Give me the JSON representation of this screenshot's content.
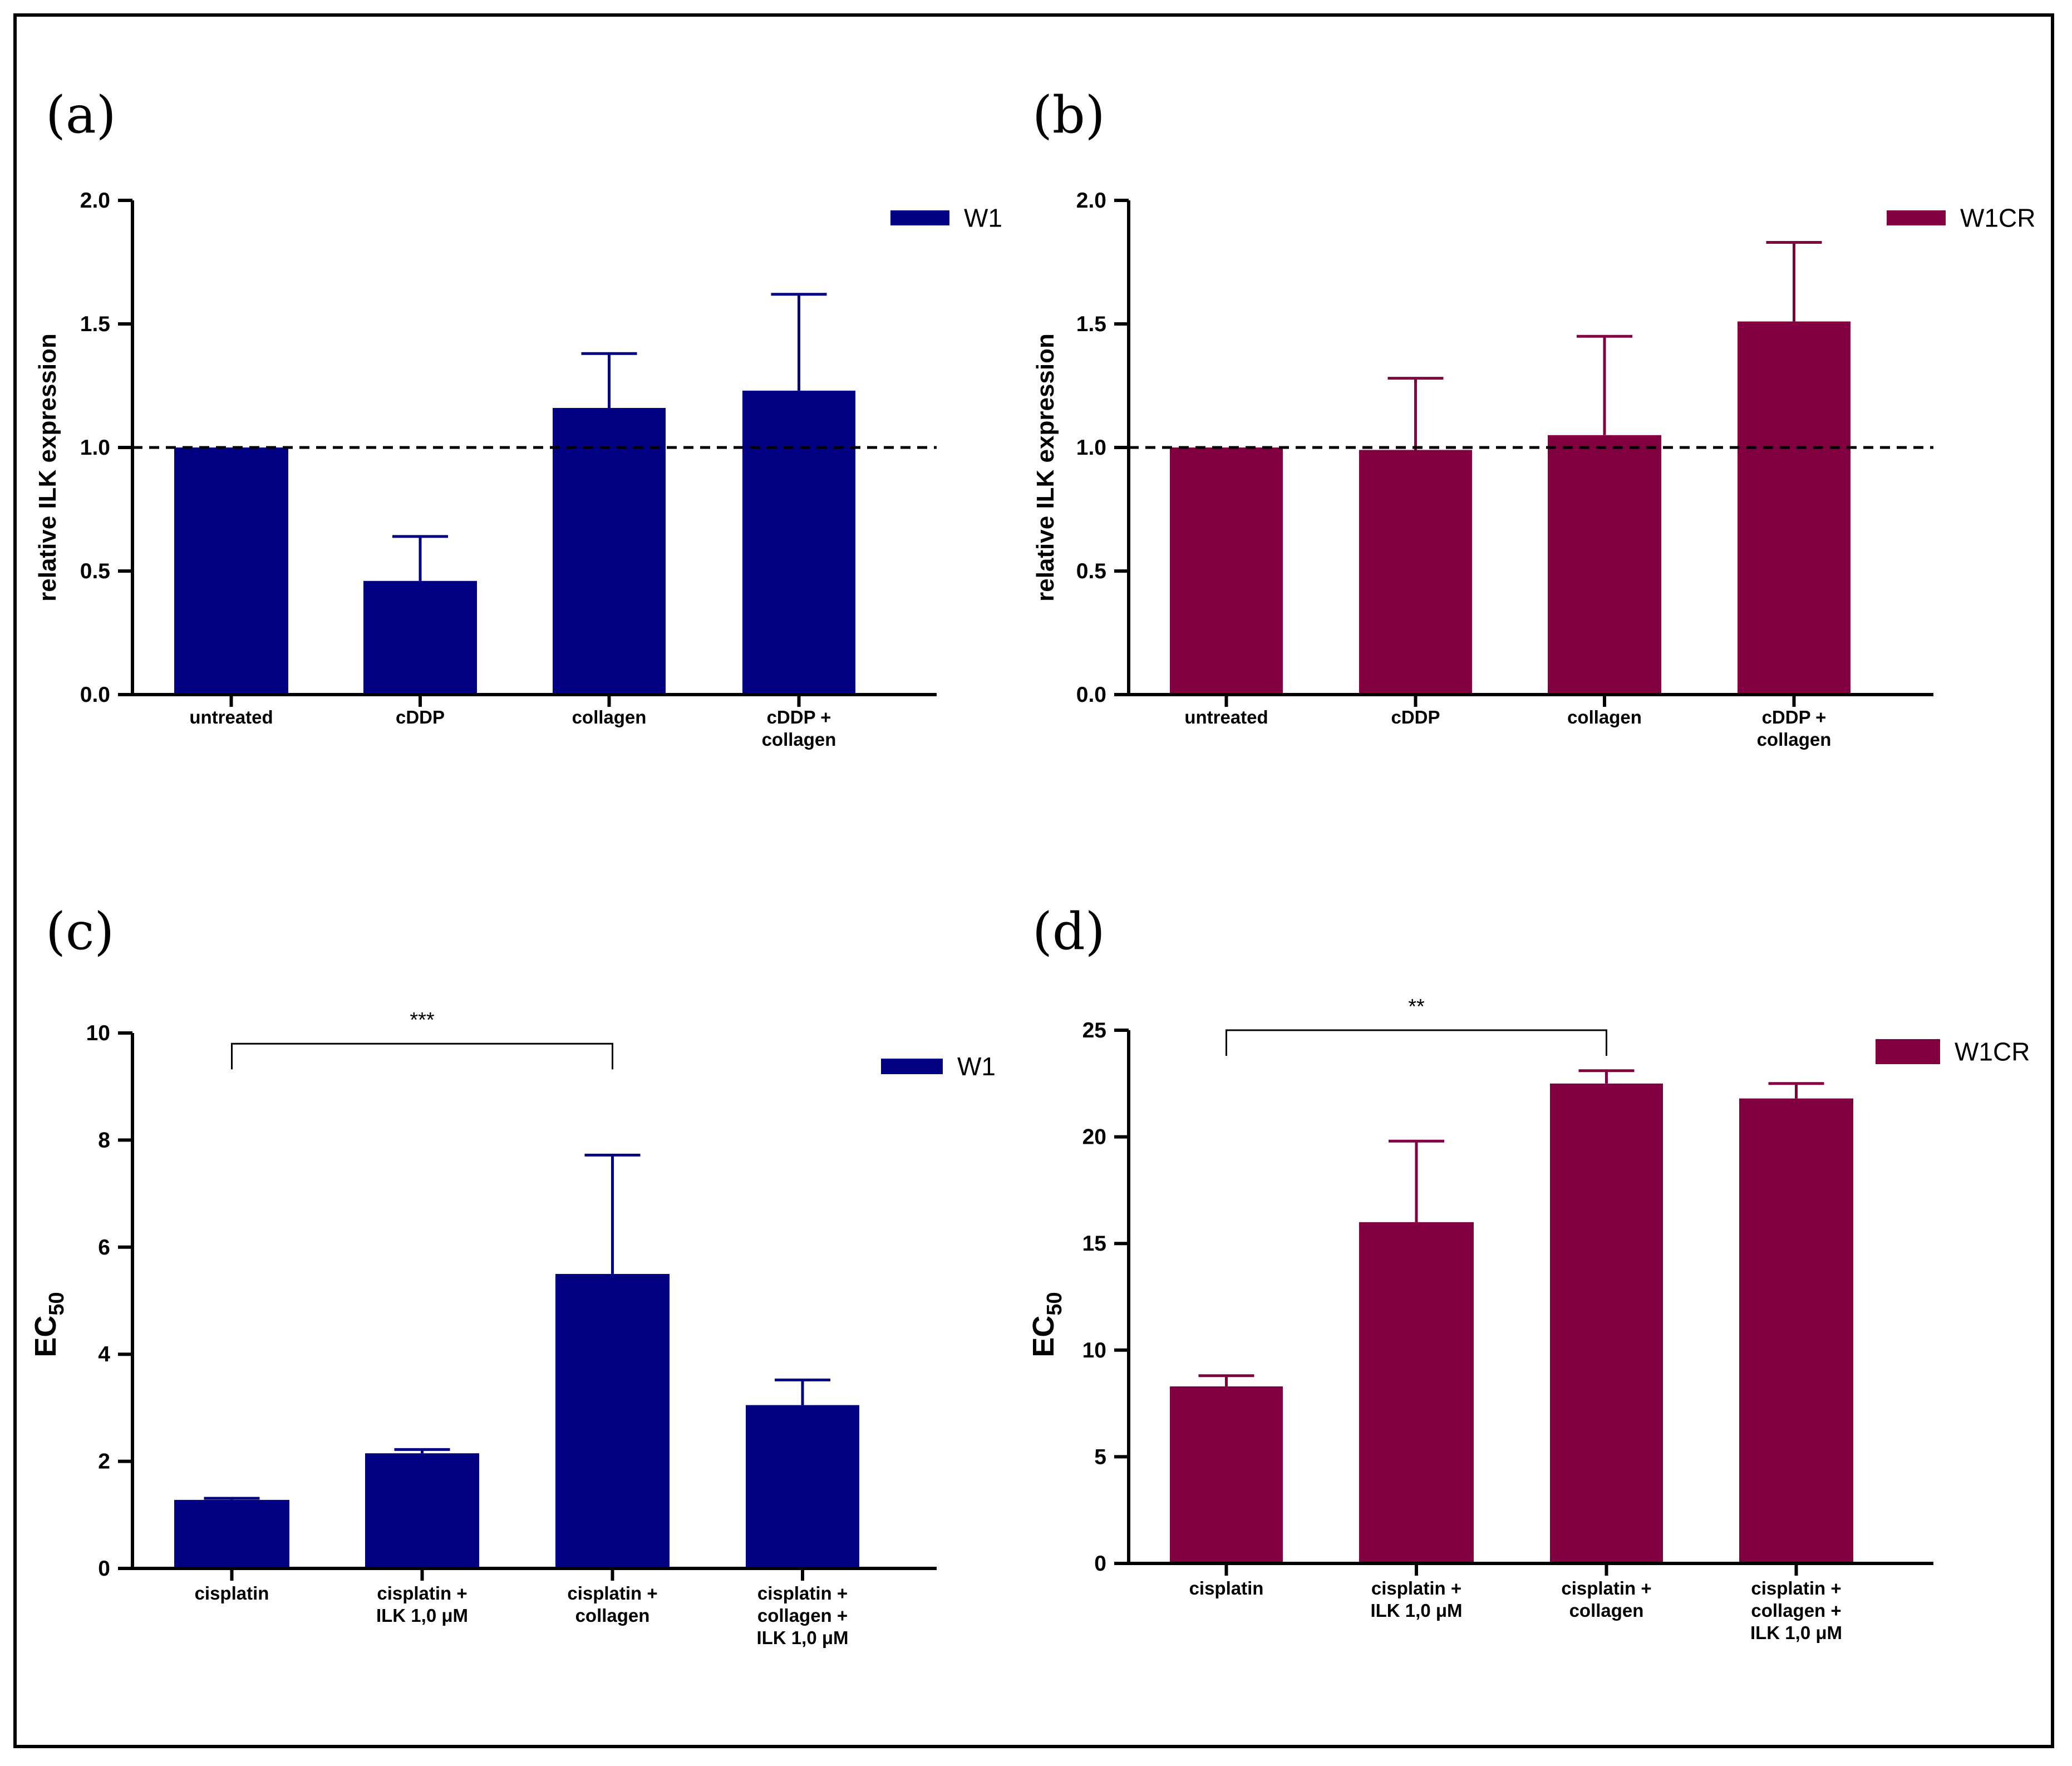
{
  "colors": {
    "w1": "#000080",
    "w1cr": "#800040",
    "axis": "#000000"
  },
  "chart_data": [
    {
      "panel": "(a)",
      "type": "bar",
      "ylabel": "relative ILK expression",
      "ylim": [
        0,
        2.0
      ],
      "yticks": [
        "0.0",
        "0.5",
        "1.0",
        "1.5",
        "2.0"
      ],
      "categories": [
        [
          "untreated"
        ],
        [
          "cDDP"
        ],
        [
          "collagen"
        ],
        [
          "cDDP +",
          "collagen"
        ]
      ],
      "series": [
        {
          "name": "W1",
          "values": [
            1.0,
            0.46,
            1.16,
            1.23
          ],
          "errors": [
            0.0,
            0.18,
            0.22,
            0.39
          ]
        }
      ],
      "reference_line": 1.0,
      "legend": "top-right"
    },
    {
      "panel": "(b)",
      "type": "bar",
      "ylabel": "relative ILK expression",
      "ylim": [
        0,
        2.0
      ],
      "yticks": [
        "0.0",
        "0.5",
        "1.0",
        "1.5",
        "2.0"
      ],
      "categories": [
        [
          "untreated"
        ],
        [
          "cDDP"
        ],
        [
          "collagen"
        ],
        [
          "cDDP +",
          "collagen"
        ]
      ],
      "series": [
        {
          "name": "W1CR",
          "values": [
            1.0,
            0.99,
            1.05,
            1.51
          ],
          "errors": [
            0.0,
            0.29,
            0.4,
            0.32
          ]
        }
      ],
      "reference_line": 1.0,
      "legend": "top-right"
    },
    {
      "panel": "(c)",
      "type": "bar",
      "ylabel": "EC",
      "ylabel_sub": "50",
      "ylim": [
        0,
        10
      ],
      "yticks": [
        "0",
        "2",
        "4",
        "6",
        "8",
        "10"
      ],
      "categories": [
        [
          "cisplatin"
        ],
        [
          "cisplatin +",
          "ILK 1,0 μM"
        ],
        [
          "cisplatin +",
          "collagen"
        ],
        [
          "cisplatin +",
          "collagen +",
          "ILK 1,0 μM"
        ]
      ],
      "series": [
        {
          "name": "W1",
          "values": [
            1.28,
            2.15,
            5.5,
            3.05
          ],
          "errors": [
            0.03,
            0.07,
            2.22,
            0.47
          ]
        }
      ],
      "significance": {
        "from": 0,
        "to": 2,
        "label": "***",
        "y": 9.8
      },
      "legend": "top-right"
    },
    {
      "panel": "(d)",
      "type": "bar",
      "ylabel": "EC",
      "ylabel_sub": "50",
      "ylim": [
        0,
        25
      ],
      "yticks": [
        "0",
        "5",
        "10",
        "15",
        "20",
        "25"
      ],
      "categories": [
        [
          "cisplatin"
        ],
        [
          "cisplatin +",
          "ILK 1,0 μM"
        ],
        [
          "cisplatin +",
          "collagen"
        ],
        [
          "cisplatin +",
          "collagen +",
          "ILK 1,0 μM"
        ]
      ],
      "series": [
        {
          "name": "W1CR",
          "values": [
            8.3,
            16.0,
            22.5,
            21.8
          ],
          "errors": [
            0.5,
            3.8,
            0.6,
            0.7
          ]
        }
      ],
      "significance": {
        "from": 0,
        "to": 2,
        "label": "**",
        "y": 25.0
      },
      "legend": "top-right"
    }
  ]
}
